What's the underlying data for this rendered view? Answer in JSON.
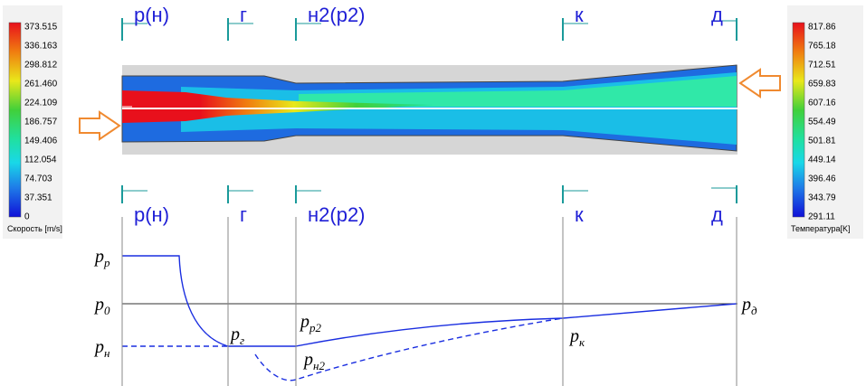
{
  "velocity_scale": {
    "title": "Скорость [m/s]",
    "ticks": [
      "373.515",
      "336.163",
      "298.812",
      "261.460",
      "224.109",
      "186.757",
      "149.406",
      "112.054",
      "74.703",
      "37.351",
      "0"
    ]
  },
  "temperature_scale": {
    "title": "Температура[K]",
    "ticks": [
      "817.86",
      "765.18",
      "712.51",
      "659.83",
      "607.16",
      "554.49",
      "501.81",
      "449.14",
      "396.46",
      "343.79",
      "291.11"
    ]
  },
  "sections_top": [
    "р(н)",
    "г",
    "н2(р2)",
    "к",
    "д"
  ],
  "sections_bottom": [
    "р(н)",
    "г",
    "н2(р2)",
    "к",
    "д"
  ],
  "pressure_labels": [
    {
      "symbol": "p",
      "subscript": "р"
    },
    {
      "symbol": "p",
      "subscript": "0"
    },
    {
      "symbol": "p",
      "subscript": "н"
    },
    {
      "symbol": "p",
      "subscript": "г"
    },
    {
      "symbol": "p",
      "subscript": "р2"
    },
    {
      "symbol": "p",
      "subscript": "н2"
    },
    {
      "symbol": "p",
      "subscript": "к"
    },
    {
      "symbol": "p",
      "subscript": "д"
    }
  ]
}
